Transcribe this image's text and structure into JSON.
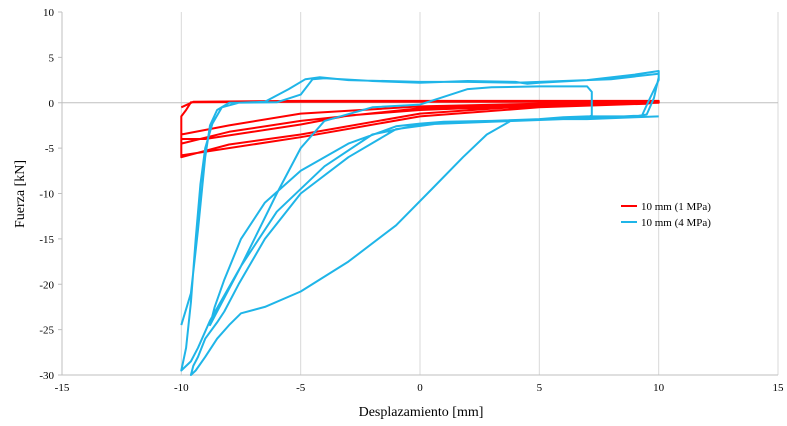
{
  "chart_data": {
    "type": "line",
    "xlabel": "Desplazamiento [mm]",
    "ylabel": "Fuerza [kN]",
    "xlim": [
      -15,
      15
    ],
    "ylim": [
      -30,
      10
    ],
    "xticks": [
      -15,
      -10,
      -5,
      0,
      5,
      10,
      15
    ],
    "yticks": [
      10,
      5,
      0,
      -5,
      -10,
      -15,
      -20,
      -25,
      -30
    ],
    "xtick_labels": [
      "-15",
      "-10",
      "-5",
      "0",
      "5",
      "10",
      "15"
    ],
    "ytick_labels": [
      "10",
      "5",
      "0",
      "-5",
      "-10",
      "-15",
      "-20",
      "-25",
      "-30"
    ],
    "grid": "vertical",
    "legend_position": "right",
    "series": [
      {
        "name": "10 mm (1 MPa)",
        "color": "#ff0000",
        "points": [
          [
            -10,
            -0.5
          ],
          [
            -9.5,
            0.1
          ],
          [
            -5,
            0.2
          ],
          [
            0,
            0.2
          ],
          [
            5,
            0.2
          ],
          [
            10,
            0.2
          ],
          [
            10,
            0
          ],
          [
            5,
            -0.3
          ],
          [
            0,
            -1.2
          ],
          [
            -5,
            -3.5
          ],
          [
            -8,
            -4.6
          ],
          [
            -10,
            -6
          ],
          [
            -10,
            -1.5
          ],
          [
            -9.8,
            -0.8
          ],
          [
            -9.6,
            0.05
          ],
          [
            -5,
            0.1
          ],
          [
            0,
            0.1
          ],
          [
            5,
            0.1
          ],
          [
            10,
            0.1
          ],
          [
            9.5,
            -0.1
          ],
          [
            5,
            -0.5
          ],
          [
            0,
            -1.5
          ],
          [
            -5,
            -3.8
          ],
          [
            -10,
            -5.8
          ],
          [
            -10,
            -4
          ],
          [
            -9,
            -4
          ],
          [
            -7,
            -3.2
          ],
          [
            -5,
            -2.4
          ],
          [
            -3,
            -1.4
          ],
          [
            0,
            -0.8
          ],
          [
            5,
            -0.3
          ],
          [
            10,
            0
          ],
          [
            10,
            0.2
          ],
          [
            5,
            -0.2
          ],
          [
            0,
            -0.6
          ],
          [
            -5,
            -2
          ],
          [
            -8,
            -3.2
          ],
          [
            -10,
            -4.5
          ],
          [
            -10,
            -3.5
          ],
          [
            -8,
            -2.5
          ],
          [
            -5,
            -1.2
          ],
          [
            0,
            -0.4
          ],
          [
            5,
            -0.1
          ],
          [
            10,
            0.1
          ]
        ]
      },
      {
        "name": "10 mm (4 MPa)",
        "color": "#1fb5e8",
        "points": [
          [
            -10,
            -24.5
          ],
          [
            -9.6,
            -21
          ],
          [
            -9.3,
            -14
          ],
          [
            -9.0,
            -6
          ],
          [
            -8.8,
            -2.5
          ],
          [
            -8.5,
            -0.8
          ],
          [
            -8.0,
            0
          ],
          [
            -6,
            0.05
          ],
          [
            -5,
            0.9
          ],
          [
            -4.5,
            2.6
          ],
          [
            -4,
            2.7
          ],
          [
            -2,
            2.4
          ],
          [
            0,
            2.2
          ],
          [
            2,
            2.4
          ],
          [
            4,
            2.3
          ],
          [
            4.5,
            2.1
          ],
          [
            5,
            2.2
          ],
          [
            7,
            2.5
          ],
          [
            9,
            3.1
          ],
          [
            10,
            3.5
          ],
          [
            10,
            2.8
          ],
          [
            9.8,
            0.5
          ],
          [
            9.5,
            -1.3
          ],
          [
            9,
            -1.5
          ],
          [
            7,
            -1.5
          ],
          [
            6,
            -1.6
          ],
          [
            5,
            -1.8
          ],
          [
            4,
            -1.9
          ],
          [
            3,
            -2.0
          ],
          [
            1,
            -2.1
          ],
          [
            0,
            -2.3
          ],
          [
            -1,
            -2.6
          ],
          [
            -3,
            -4.5
          ],
          [
            -5,
            -7.5
          ],
          [
            -6.5,
            -11
          ],
          [
            -7.5,
            -15
          ],
          [
            -8.2,
            -19.5
          ],
          [
            -8.6,
            -22.5
          ],
          [
            -8.8,
            -24.5
          ],
          [
            -8.5,
            -23
          ],
          [
            -7.5,
            -18
          ],
          [
            -6,
            -10
          ],
          [
            -5,
            -5
          ],
          [
            -4,
            -2
          ],
          [
            -2,
            -0.5
          ],
          [
            0,
            -0.2
          ],
          [
            2,
            1.5
          ],
          [
            3,
            1.7
          ],
          [
            5,
            1.8
          ],
          [
            7,
            1.8
          ],
          [
            7.2,
            1.2
          ],
          [
            7.2,
            -1.4
          ],
          [
            7,
            -1.6
          ],
          [
            5,
            -1.9
          ],
          [
            3,
            -2.1
          ],
          [
            0,
            -2.4
          ],
          [
            -2,
            -3.5
          ],
          [
            -4,
            -7
          ],
          [
            -6,
            -12
          ],
          [
            -7.5,
            -18
          ],
          [
            -8.8,
            -24
          ],
          [
            -9.3,
            -27
          ],
          [
            -9.6,
            -28.5
          ],
          [
            -10,
            -29.5
          ],
          [
            -9.8,
            -27
          ],
          [
            -9.6,
            -22
          ],
          [
            -9.4,
            -15
          ],
          [
            -9.2,
            -9
          ],
          [
            -9.0,
            -5
          ],
          [
            -8.7,
            -2.3
          ],
          [
            -8.3,
            -0.5
          ],
          [
            -7.6,
            0
          ],
          [
            -6.5,
            0.1
          ],
          [
            -5.5,
            1.5
          ],
          [
            -4.8,
            2.6
          ],
          [
            -4.2,
            2.8
          ],
          [
            -3,
            2.5
          ],
          [
            0,
            2.3
          ],
          [
            2,
            2.3
          ],
          [
            4,
            2.2
          ],
          [
            6,
            2.4
          ],
          [
            8,
            2.6
          ],
          [
            10,
            3.2
          ],
          [
            10,
            2.5
          ],
          [
            9.6,
            0.3
          ],
          [
            9.3,
            -1.4
          ],
          [
            7,
            -1.7
          ],
          [
            4,
            -2.0
          ],
          [
            1,
            -2.2
          ],
          [
            -1,
            -2.9
          ],
          [
            -3,
            -6
          ],
          [
            -5,
            -10
          ],
          [
            -6.5,
            -15
          ],
          [
            -7.6,
            -20
          ],
          [
            -8.2,
            -23
          ],
          [
            -8.5,
            -24.2
          ],
          [
            -9.0,
            -26
          ],
          [
            -9.3,
            -28
          ],
          [
            -9.5,
            -29
          ],
          [
            -9.6,
            -30
          ],
          [
            -9.4,
            -29.5
          ],
          [
            -9,
            -28
          ],
          [
            -8.5,
            -26
          ],
          [
            -8,
            -24.5
          ],
          [
            -7.5,
            -23.2
          ],
          [
            -6.5,
            -22.5
          ],
          [
            -5,
            -20.8
          ],
          [
            -3,
            -17.5
          ],
          [
            -1,
            -13.5
          ],
          [
            0.5,
            -9.5
          ],
          [
            1.8,
            -6
          ],
          [
            2.8,
            -3.5
          ],
          [
            3.8,
            -2
          ],
          [
            5.5,
            -1.8
          ],
          [
            7,
            -1.8
          ],
          [
            9,
            -1.6
          ],
          [
            10,
            -1.5
          ]
        ]
      }
    ]
  }
}
